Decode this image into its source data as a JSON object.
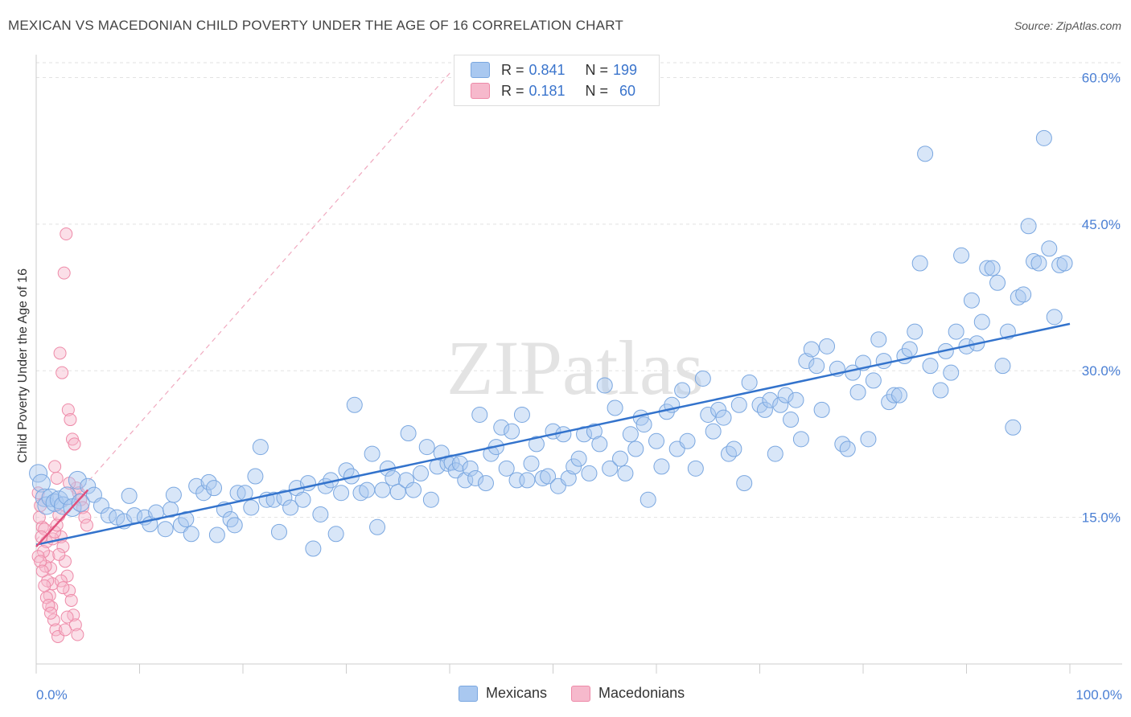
{
  "header": {
    "title": "MEXICAN VS MACEDONIAN CHILD POVERTY UNDER THE AGE OF 16 CORRELATION CHART",
    "source": "Source: ZipAtlas.com"
  },
  "watermark": "ZIPatlas",
  "legend": {
    "rows": [
      {
        "r_label": "R =",
        "r_value": "0.841",
        "n_label": "N =",
        "n_value": "199"
      },
      {
        "r_label": "R =",
        "r_value": "0.181",
        "n_label": "N =",
        "n_value": "60"
      }
    ]
  },
  "bottom_legend": {
    "mexicans": "Mexicans",
    "macedonians": "Macedonians"
  },
  "colors": {
    "mexicans_fill": "#a9c8f0",
    "mexicans_stroke": "#7aa7e0",
    "mexicans_line": "#3373cc",
    "macedonians_fill": "#f6b9cc",
    "macedonians_stroke": "#ee8aa8",
    "macedonians_line": "#e0507c",
    "axis_text": "#4a7fd4"
  },
  "chart_data": {
    "type": "scatter",
    "title": "MEXICAN VS MACEDONIAN CHILD POVERTY UNDER THE AGE OF 16 CORRELATION CHART",
    "xlabel": "",
    "ylabel": "Child Poverty Under the Age of 16",
    "xlim": [
      0,
      100
    ],
    "ylim": [
      0,
      63
    ],
    "x_tick_labels": [
      "0.0%",
      "100.0%"
    ],
    "y_ticks": [
      15,
      30,
      45,
      60
    ],
    "y_tick_labels": [
      "15.0%",
      "30.0%",
      "45.0%",
      "60.0%"
    ],
    "grid": true,
    "legend_position": "top-center",
    "series": [
      {
        "name": "Mexicans",
        "r": 0.841,
        "n": 199,
        "trend": {
          "x": [
            0,
            100
          ],
          "y": [
            12.2,
            34.8
          ]
        },
        "points": [
          [
            0.2,
            19.5
          ],
          [
            0.5,
            18.5
          ],
          [
            0.8,
            17.0
          ],
          [
            1.0,
            16.2
          ],
          [
            1.4,
            17.0
          ],
          [
            1.8,
            16.5
          ],
          [
            2.2,
            16.8
          ],
          [
            2.6,
            16.2
          ],
          [
            3.0,
            17.2
          ],
          [
            3.5,
            16.0
          ],
          [
            4.0,
            18.8
          ],
          [
            4.3,
            16.5
          ],
          [
            5.0,
            18.2
          ],
          [
            5.6,
            17.3
          ],
          [
            6.3,
            16.2
          ],
          [
            7.0,
            15.2
          ],
          [
            7.8,
            15.0
          ],
          [
            8.5,
            14.6
          ],
          [
            9.0,
            17.2
          ],
          [
            9.5,
            15.2
          ],
          [
            10.5,
            15.0
          ],
          [
            11.0,
            14.3
          ],
          [
            11.6,
            15.5
          ],
          [
            12.5,
            13.8
          ],
          [
            13.0,
            15.8
          ],
          [
            13.3,
            17.3
          ],
          [
            14.0,
            14.2
          ],
          [
            14.5,
            14.8
          ],
          [
            15.0,
            13.3
          ],
          [
            15.5,
            18.2
          ],
          [
            16.2,
            17.5
          ],
          [
            16.7,
            18.6
          ],
          [
            17.2,
            18.0
          ],
          [
            17.5,
            13.2
          ],
          [
            18.2,
            15.8
          ],
          [
            18.8,
            14.8
          ],
          [
            19.2,
            14.2
          ],
          [
            19.5,
            17.5
          ],
          [
            20.2,
            17.5
          ],
          [
            20.8,
            16.0
          ],
          [
            21.2,
            19.2
          ],
          [
            21.7,
            22.2
          ],
          [
            22.3,
            16.8
          ],
          [
            23.0,
            16.8
          ],
          [
            23.5,
            13.5
          ],
          [
            24.0,
            17.0
          ],
          [
            24.6,
            16.0
          ],
          [
            25.2,
            18.0
          ],
          [
            25.8,
            16.8
          ],
          [
            26.3,
            18.5
          ],
          [
            26.8,
            11.8
          ],
          [
            27.5,
            15.3
          ],
          [
            28.0,
            18.2
          ],
          [
            28.5,
            18.8
          ],
          [
            29.0,
            13.3
          ],
          [
            29.5,
            17.5
          ],
          [
            30.0,
            19.8
          ],
          [
            30.5,
            19.2
          ],
          [
            30.8,
            26.5
          ],
          [
            31.4,
            17.5
          ],
          [
            32.0,
            17.8
          ],
          [
            32.5,
            21.5
          ],
          [
            33.0,
            14.0
          ],
          [
            33.5,
            17.8
          ],
          [
            34.0,
            20.0
          ],
          [
            34.5,
            19.0
          ],
          [
            35.0,
            17.6
          ],
          [
            35.8,
            18.8
          ],
          [
            36.0,
            23.6
          ],
          [
            36.5,
            17.8
          ],
          [
            37.2,
            19.5
          ],
          [
            37.8,
            22.2
          ],
          [
            38.2,
            16.8
          ],
          [
            38.8,
            20.2
          ],
          [
            39.2,
            21.6
          ],
          [
            39.8,
            20.5
          ],
          [
            40.2,
            20.6
          ],
          [
            40.6,
            19.8
          ],
          [
            41.0,
            20.5
          ],
          [
            41.5,
            18.8
          ],
          [
            42.0,
            20.0
          ],
          [
            42.5,
            19.0
          ],
          [
            42.9,
            25.5
          ],
          [
            43.5,
            18.5
          ],
          [
            44.0,
            21.5
          ],
          [
            44.5,
            22.2
          ],
          [
            45.0,
            24.2
          ],
          [
            45.5,
            20.0
          ],
          [
            46.0,
            23.8
          ],
          [
            46.5,
            18.8
          ],
          [
            47.0,
            25.5
          ],
          [
            47.5,
            18.8
          ],
          [
            47.9,
            20.5
          ],
          [
            48.4,
            22.5
          ],
          [
            49.0,
            19.0
          ],
          [
            49.5,
            19.2
          ],
          [
            50.0,
            23.8
          ],
          [
            50.5,
            18.2
          ],
          [
            51.0,
            23.5
          ],
          [
            51.5,
            19.0
          ],
          [
            52.0,
            20.2
          ],
          [
            52.5,
            21.0
          ],
          [
            53.0,
            23.5
          ],
          [
            53.5,
            19.5
          ],
          [
            54.0,
            23.8
          ],
          [
            54.5,
            22.5
          ],
          [
            55.0,
            28.5
          ],
          [
            55.5,
            20.0
          ],
          [
            56.0,
            26.2
          ],
          [
            56.5,
            21.0
          ],
          [
            57.0,
            19.5
          ],
          [
            57.5,
            23.5
          ],
          [
            58.0,
            22.0
          ],
          [
            58.5,
            25.2
          ],
          [
            58.8,
            24.5
          ],
          [
            59.2,
            16.8
          ],
          [
            60.0,
            22.8
          ],
          [
            60.5,
            20.2
          ],
          [
            61.0,
            25.8
          ],
          [
            61.5,
            26.5
          ],
          [
            62.0,
            22.0
          ],
          [
            62.5,
            28.0
          ],
          [
            63.0,
            22.8
          ],
          [
            63.8,
            20.0
          ],
          [
            64.5,
            29.2
          ],
          [
            65.0,
            25.5
          ],
          [
            65.5,
            23.8
          ],
          [
            66.0,
            26.0
          ],
          [
            66.5,
            25.2
          ],
          [
            67.0,
            21.5
          ],
          [
            67.5,
            22.0
          ],
          [
            68.0,
            26.5
          ],
          [
            68.5,
            18.5
          ],
          [
            69.0,
            28.8
          ],
          [
            70.0,
            26.5
          ],
          [
            70.5,
            26.0
          ],
          [
            71.0,
            27.0
          ],
          [
            71.5,
            21.5
          ],
          [
            72.0,
            26.5
          ],
          [
            72.5,
            27.5
          ],
          [
            73.0,
            25.0
          ],
          [
            73.5,
            27.0
          ],
          [
            74.0,
            23.0
          ],
          [
            74.5,
            31.0
          ],
          [
            75.0,
            32.2
          ],
          [
            75.5,
            30.5
          ],
          [
            76.0,
            26.0
          ],
          [
            76.5,
            32.5
          ],
          [
            77.5,
            30.2
          ],
          [
            78.0,
            22.5
          ],
          [
            78.5,
            22.0
          ],
          [
            79.0,
            29.8
          ],
          [
            79.5,
            27.8
          ],
          [
            80.0,
            30.8
          ],
          [
            80.5,
            23.0
          ],
          [
            81.0,
            29.0
          ],
          [
            81.5,
            33.2
          ],
          [
            82.0,
            31.0
          ],
          [
            82.5,
            26.8
          ],
          [
            83.0,
            27.5
          ],
          [
            83.5,
            27.5
          ],
          [
            84.0,
            31.5
          ],
          [
            84.5,
            32.2
          ],
          [
            85.0,
            34.0
          ],
          [
            85.5,
            41.0
          ],
          [
            86.0,
            52.2
          ],
          [
            86.5,
            30.5
          ],
          [
            87.5,
            28.0
          ],
          [
            88.0,
            32.0
          ],
          [
            88.5,
            29.8
          ],
          [
            89.0,
            34.0
          ],
          [
            89.5,
            41.8
          ],
          [
            90.0,
            32.5
          ],
          [
            90.5,
            37.2
          ],
          [
            91.0,
            32.8
          ],
          [
            91.5,
            35.0
          ],
          [
            92.0,
            40.5
          ],
          [
            92.5,
            40.5
          ],
          [
            93.0,
            39.0
          ],
          [
            93.5,
            30.5
          ],
          [
            94.0,
            34.0
          ],
          [
            94.5,
            24.2
          ],
          [
            95.0,
            37.5
          ],
          [
            95.5,
            37.8
          ],
          [
            96.0,
            44.8
          ],
          [
            96.5,
            41.2
          ],
          [
            97.0,
            41.0
          ],
          [
            97.5,
            53.8
          ],
          [
            98.0,
            42.5
          ],
          [
            98.5,
            35.5
          ],
          [
            99.0,
            40.8
          ],
          [
            99.5,
            41.0
          ]
        ]
      },
      {
        "name": "Macedonians",
        "r": 0.181,
        "n": 60,
        "trend": {
          "x": [
            0,
            5
          ],
          "y": [
            12.0,
            17.8
          ]
        },
        "points": [
          [
            0.2,
            17.5
          ],
          [
            0.4,
            16.2
          ],
          [
            0.6,
            14.0
          ],
          [
            0.8,
            13.8
          ],
          [
            1.0,
            12.5
          ],
          [
            1.2,
            11.0
          ],
          [
            1.4,
            9.8
          ],
          [
            1.6,
            8.2
          ],
          [
            1.8,
            20.2
          ],
          [
            2.0,
            19.0
          ],
          [
            2.2,
            15.2
          ],
          [
            2.4,
            13.0
          ],
          [
            2.6,
            12.0
          ],
          [
            2.8,
            10.5
          ],
          [
            3.0,
            9.0
          ],
          [
            3.2,
            7.5
          ],
          [
            3.4,
            6.5
          ],
          [
            3.6,
            5.0
          ],
          [
            3.8,
            4.0
          ],
          [
            4.0,
            3.0
          ],
          [
            0.3,
            15.0
          ],
          [
            0.5,
            13.0
          ],
          [
            0.7,
            11.5
          ],
          [
            0.9,
            10.0
          ],
          [
            1.1,
            8.5
          ],
          [
            1.3,
            7.0
          ],
          [
            1.5,
            5.8
          ],
          [
            1.7,
            4.5
          ],
          [
            1.9,
            3.5
          ],
          [
            2.1,
            2.8
          ],
          [
            2.3,
            31.8
          ],
          [
            2.5,
            29.8
          ],
          [
            2.7,
            40.0
          ],
          [
            2.9,
            44.0
          ],
          [
            3.1,
            26.0
          ],
          [
            3.3,
            25.0
          ],
          [
            3.5,
            23.0
          ],
          [
            3.7,
            22.5
          ],
          [
            3.9,
            18.0
          ],
          [
            4.1,
            17.5
          ],
          [
            4.3,
            16.8
          ],
          [
            4.5,
            16.0
          ],
          [
            4.7,
            15.0
          ],
          [
            4.9,
            14.2
          ],
          [
            0.2,
            11.0
          ],
          [
            0.4,
            10.5
          ],
          [
            0.6,
            9.5
          ],
          [
            0.8,
            8.0
          ],
          [
            1.0,
            6.8
          ],
          [
            1.2,
            6.0
          ],
          [
            1.4,
            5.2
          ],
          [
            1.6,
            12.8
          ],
          [
            1.8,
            13.5
          ],
          [
            2.0,
            14.2
          ],
          [
            2.2,
            11.2
          ],
          [
            2.4,
            8.5
          ],
          [
            2.6,
            7.8
          ],
          [
            2.8,
            3.5
          ],
          [
            3.0,
            4.8
          ],
          [
            3.2,
            18.5
          ]
        ]
      }
    ]
  }
}
